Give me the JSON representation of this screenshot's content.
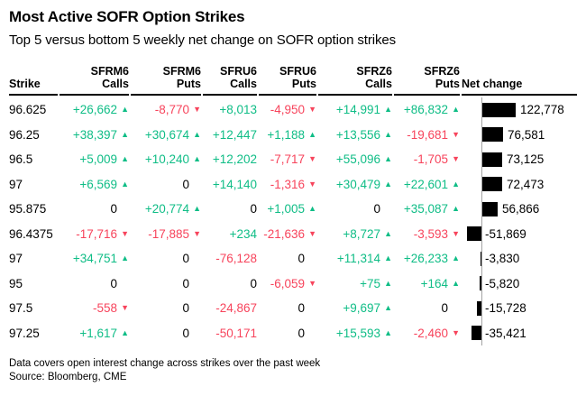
{
  "title": "Most Active SOFR Option Strikes",
  "subtitle": "Top 5 versus bottom 5 weekly net change on SOFR option strikes",
  "footnote": "Data covers open interest change across strikes over the past week",
  "source": "Source: Bloomberg, CME",
  "colors": {
    "positive": "#0FBD86",
    "negative": "#F7445C",
    "bar": "#000000",
    "zero_line": "#A3A3A3",
    "text": "#000000"
  },
  "table": {
    "strike_header": "Strike",
    "net_change_header": "Net change",
    "contract_headers": [
      {
        "line1": "SFRM6",
        "line2": "Calls"
      },
      {
        "line1": "SFRM6",
        "line2": "Puts"
      },
      {
        "line1": "SFRU6",
        "line2": "Calls"
      },
      {
        "line1": "SFRU6",
        "line2": "Puts"
      },
      {
        "line1": "SFRZ6",
        "line2": "Calls"
      },
      {
        "line1": "SFRZ6",
        "line2": "Puts"
      }
    ],
    "rows": [
      {
        "strike": "96.625",
        "cells": [
          {
            "t": "+26,662",
            "c": "pos",
            "a": "up"
          },
          {
            "t": "-8,770",
            "c": "neg",
            "a": "down"
          },
          {
            "t": "+8,013",
            "c": "pos",
            "a": ""
          },
          {
            "t": "-4,950",
            "c": "neg",
            "a": "down"
          },
          {
            "t": "+14,991",
            "c": "pos",
            "a": "up"
          },
          {
            "t": "+86,832",
            "c": "pos",
            "a": "up"
          }
        ],
        "net": 122778,
        "net_label": "122,778"
      },
      {
        "strike": "96.25",
        "cells": [
          {
            "t": "+38,397",
            "c": "pos",
            "a": "up"
          },
          {
            "t": "+30,674",
            "c": "pos",
            "a": "up"
          },
          {
            "t": "+12,447",
            "c": "pos",
            "a": ""
          },
          {
            "t": "+1,188",
            "c": "pos",
            "a": "up"
          },
          {
            "t": "+13,556",
            "c": "pos",
            "a": "up"
          },
          {
            "t": "-19,681",
            "c": "neg",
            "a": "down"
          }
        ],
        "net": 76581,
        "net_label": "76,581"
      },
      {
        "strike": "96.5",
        "cells": [
          {
            "t": "+5,009",
            "c": "pos",
            "a": "up"
          },
          {
            "t": "+10,240",
            "c": "pos",
            "a": "up"
          },
          {
            "t": "+12,202",
            "c": "pos",
            "a": ""
          },
          {
            "t": "-7,717",
            "c": "neg",
            "a": "down"
          },
          {
            "t": "+55,096",
            "c": "pos",
            "a": "up"
          },
          {
            "t": "-1,705",
            "c": "neg",
            "a": "down"
          }
        ],
        "net": 73125,
        "net_label": "73,125"
      },
      {
        "strike": "97",
        "cells": [
          {
            "t": "+6,569",
            "c": "pos",
            "a": "up"
          },
          {
            "t": "0",
            "c": "zero",
            "a": ""
          },
          {
            "t": "+14,140",
            "c": "pos",
            "a": ""
          },
          {
            "t": "-1,316",
            "c": "neg",
            "a": "down"
          },
          {
            "t": "+30,479",
            "c": "pos",
            "a": "up"
          },
          {
            "t": "+22,601",
            "c": "pos",
            "a": "up"
          }
        ],
        "net": 72473,
        "net_label": "72,473"
      },
      {
        "strike": "95.875",
        "cells": [
          {
            "t": "0",
            "c": "zero",
            "a": ""
          },
          {
            "t": "+20,774",
            "c": "pos",
            "a": "up"
          },
          {
            "t": "0",
            "c": "zero",
            "a": ""
          },
          {
            "t": "+1,005",
            "c": "pos",
            "a": "up"
          },
          {
            "t": "0",
            "c": "zero",
            "a": ""
          },
          {
            "t": "+35,087",
            "c": "pos",
            "a": "up"
          }
        ],
        "net": 56866,
        "net_label": "56,866"
      },
      {
        "strike": "96.4375",
        "cells": [
          {
            "t": "-17,716",
            "c": "neg",
            "a": "down"
          },
          {
            "t": "-17,885",
            "c": "neg",
            "a": "down"
          },
          {
            "t": "+234",
            "c": "pos",
            "a": ""
          },
          {
            "t": "-21,636",
            "c": "neg",
            "a": "down"
          },
          {
            "t": "+8,727",
            "c": "pos",
            "a": "up"
          },
          {
            "t": "-3,593",
            "c": "neg",
            "a": "down"
          }
        ],
        "net": -51869,
        "net_label": "-51,869"
      },
      {
        "strike": "97",
        "cells": [
          {
            "t": "+34,751",
            "c": "pos",
            "a": "up"
          },
          {
            "t": "0",
            "c": "zero",
            "a": ""
          },
          {
            "t": "-76,128",
            "c": "neg",
            "a": ""
          },
          {
            "t": "0",
            "c": "zero",
            "a": ""
          },
          {
            "t": "+11,314",
            "c": "pos",
            "a": "up"
          },
          {
            "t": "+26,233",
            "c": "pos",
            "a": "up"
          }
        ],
        "net": -3830,
        "net_label": "-3,830"
      },
      {
        "strike": "95",
        "cells": [
          {
            "t": "0",
            "c": "zero",
            "a": ""
          },
          {
            "t": "0",
            "c": "zero",
            "a": ""
          },
          {
            "t": "0",
            "c": "zero",
            "a": ""
          },
          {
            "t": "-6,059",
            "c": "neg",
            "a": "down"
          },
          {
            "t": "+75",
            "c": "pos",
            "a": "up"
          },
          {
            "t": "+164",
            "c": "pos",
            "a": "up"
          }
        ],
        "net": -5820,
        "net_label": "-5,820"
      },
      {
        "strike": "97.5",
        "cells": [
          {
            "t": "-558",
            "c": "neg",
            "a": "down"
          },
          {
            "t": "0",
            "c": "zero",
            "a": ""
          },
          {
            "t": "-24,867",
            "c": "neg",
            "a": ""
          },
          {
            "t": "0",
            "c": "zero",
            "a": ""
          },
          {
            "t": "+9,697",
            "c": "pos",
            "a": "up"
          },
          {
            "t": "0",
            "c": "zero",
            "a": ""
          }
        ],
        "net": -15728,
        "net_label": "-15,728"
      },
      {
        "strike": "97.25",
        "cells": [
          {
            "t": "+1,617",
            "c": "pos",
            "a": "up"
          },
          {
            "t": "0",
            "c": "zero",
            "a": ""
          },
          {
            "t": "-50,171",
            "c": "neg",
            "a": ""
          },
          {
            "t": "0",
            "c": "zero",
            "a": ""
          },
          {
            "t": "+15,593",
            "c": "pos",
            "a": "up"
          },
          {
            "t": "-2,460",
            "c": "neg",
            "a": "down"
          }
        ],
        "net": -35421,
        "net_label": "-35,421"
      }
    ]
  },
  "chart_data": {
    "type": "table",
    "title": "Most Active SOFR Option Strikes",
    "subtitle": "Top 5 versus bottom 5 weekly net change on SOFR option strikes",
    "columns": [
      "Strike",
      "SFRM6 Calls",
      "SFRM6 Puts",
      "SFRU6 Calls",
      "SFRU6 Puts",
      "SFRZ6 Calls",
      "SFRZ6 Puts",
      "Net change"
    ],
    "rows": [
      [
        "96.625",
        26662,
        -8770,
        8013,
        -4950,
        14991,
        86832,
        122778
      ],
      [
        "96.25",
        38397,
        30674,
        12447,
        1188,
        13556,
        -19681,
        76581
      ],
      [
        "96.5",
        5009,
        10240,
        12202,
        -7717,
        55096,
        -1705,
        73125
      ],
      [
        "97",
        6569,
        0,
        14140,
        -1316,
        30479,
        22601,
        72473
      ],
      [
        "95.875",
        0,
        20774,
        0,
        1005,
        0,
        35087,
        56866
      ],
      [
        "96.4375",
        -17716,
        -17885,
        234,
        -21636,
        8727,
        -3593,
        -51869
      ],
      [
        "97",
        34751,
        0,
        -76128,
        0,
        11314,
        26233,
        -3830
      ],
      [
        "95",
        0,
        0,
        0,
        -6059,
        75,
        164,
        -5820
      ],
      [
        "97.5",
        -558,
        0,
        -24867,
        0,
        9697,
        0,
        -15728
      ],
      [
        "97.25",
        1617,
        0,
        -50171,
        0,
        15593,
        -2460,
        -35421
      ]
    ],
    "bar_column": "Net change",
    "bar_axis_range": [
      -52000,
      123000
    ],
    "notes": "Black horizontal bars off a gray zero axis; positive values right, negative values left. Up arrows green, down arrows pink; SFRU6 Calls column shows no arrows.",
    "footnote": "Data covers open interest change across strikes over the past week",
    "source": "Source: Bloomberg, CME"
  }
}
